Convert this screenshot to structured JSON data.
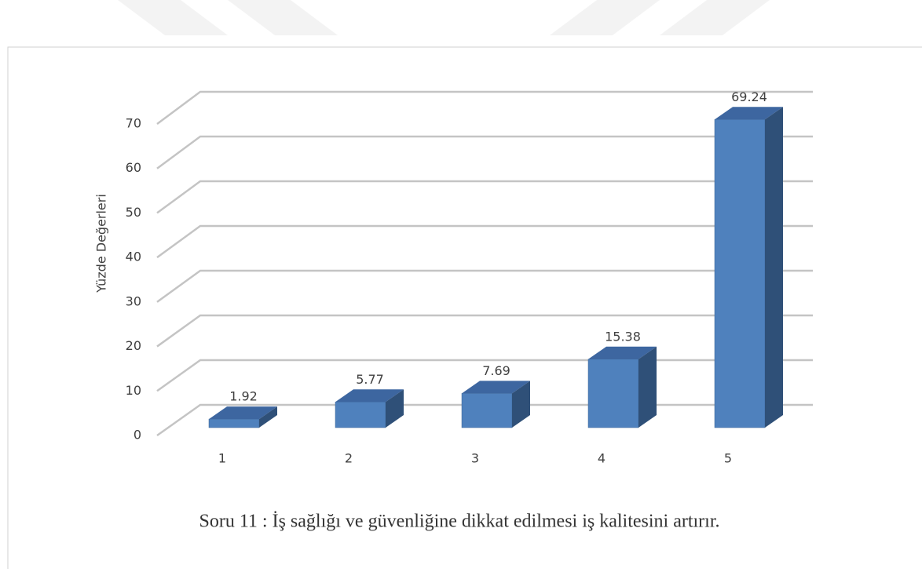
{
  "chart_data": {
    "type": "bar3d",
    "y_label": "Yüzde Değerleri",
    "caption": "Soru 11 : İş sağlığı ve güvenliğine dikkat edilmesi iş kalitesini artırır.",
    "categories": [
      "1",
      "2",
      "3",
      "4",
      "5"
    ],
    "values": [
      1.92,
      5.77,
      7.69,
      15.38,
      69.24
    ],
    "color": "#4f81bd",
    "ylim": [
      0,
      70
    ],
    "yticks": [
      0,
      10,
      20,
      30,
      40,
      50,
      60,
      70
    ],
    "grid": true
  }
}
